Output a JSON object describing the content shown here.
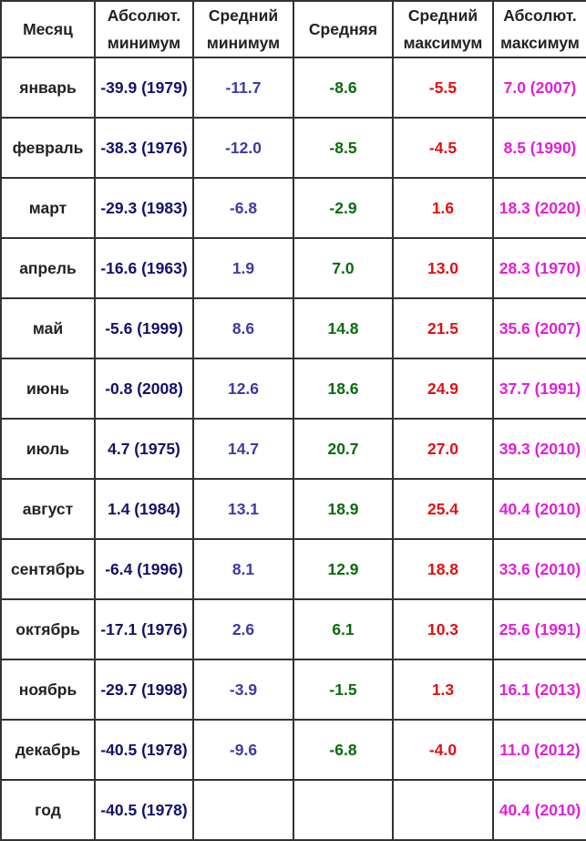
{
  "table": {
    "header": [
      "Месяц",
      "Абсолют. минимум",
      "Средний минимум",
      "Средняя",
      "Средний максимум",
      "Абсолют. максимум"
    ],
    "rows": [
      [
        "январь",
        "-39.9 (1979)",
        "-11.7",
        "-8.6",
        "-5.5",
        "7.0 (2007)"
      ],
      [
        "февраль",
        "-38.3 (1976)",
        "-12.0",
        "-8.5",
        "-4.5",
        "8.5 (1990)"
      ],
      [
        "март",
        "-29.3 (1983)",
        "-6.8",
        "-2.9",
        "1.6",
        "18.3 (2020)"
      ],
      [
        "апрель",
        "-16.6 (1963)",
        "1.9",
        "7.0",
        "13.0",
        "28.3 (1970)"
      ],
      [
        "май",
        "-5.6 (1999)",
        "8.6",
        "14.8",
        "21.5",
        "35.6 (2007)"
      ],
      [
        "июнь",
        "-0.8 (2008)",
        "12.6",
        "18.6",
        "24.9",
        "37.7 (1991)"
      ],
      [
        "июль",
        "4.7 (1975)",
        "14.7",
        "20.7",
        "27.0",
        "39.3 (2010)"
      ],
      [
        "август",
        "1.4 (1984)",
        "13.1",
        "18.9",
        "25.4",
        "40.4 (2010)"
      ],
      [
        "сентябрь",
        "-6.4 (1996)",
        "8.1",
        "12.9",
        "18.8",
        "33.6 (2010)"
      ],
      [
        "октябрь",
        "-17.1 (1976)",
        "2.6",
        "6.1",
        "10.3",
        "25.6 (1991)"
      ],
      [
        "ноябрь",
        "-29.7 (1998)",
        "-3.9",
        "-1.5",
        "1.3",
        "16.1 (2013)"
      ],
      [
        "декабрь",
        "-40.5 (1978)",
        "-9.6",
        "-6.8",
        "-4.0",
        "11.0 (2012)"
      ],
      [
        "год",
        "-40.5 (1978)",
        null,
        null,
        null,
        "40.4 (2010)"
      ]
    ]
  }
}
